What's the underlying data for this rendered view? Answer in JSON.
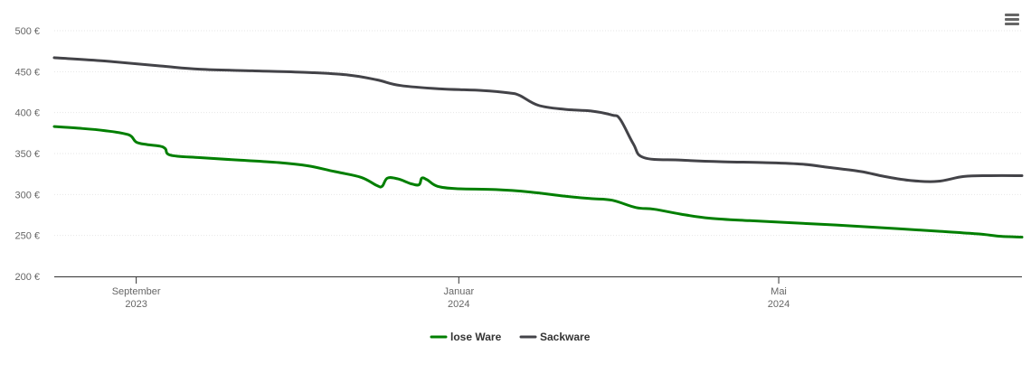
{
  "menu": {
    "icon": "hamburger-menu-icon"
  },
  "chart_data": {
    "type": "line",
    "xaxis": {
      "ticks": [
        {
          "date": "2023-09-01",
          "month": "September",
          "year": "2023"
        },
        {
          "date": "2024-01-01",
          "month": "Januar",
          "year": "2024"
        },
        {
          "date": "2024-05-01",
          "month": "Mai",
          "year": "2024"
        }
      ],
      "range": [
        "2023-08-01",
        "2024-08-01"
      ]
    },
    "yaxis": {
      "ticks": [
        "200 €",
        "250 €",
        "300 €",
        "350 €",
        "400 €",
        "450 €",
        "500 €"
      ],
      "tick_values": [
        200,
        250,
        300,
        350,
        400,
        450,
        500
      ],
      "ylim": [
        200,
        500
      ]
    },
    "grid": true,
    "legend_position": "bottom-center",
    "series": [
      {
        "name": "lose Ware",
        "color": "#007f00",
        "points": [
          [
            "2023-08-01",
            383
          ],
          [
            "2023-08-10",
            381
          ],
          [
            "2023-08-20",
            378
          ],
          [
            "2023-08-29",
            373
          ],
          [
            "2023-09-01",
            364
          ],
          [
            "2023-09-05",
            361
          ],
          [
            "2023-09-10",
            359
          ],
          [
            "2023-09-12",
            356
          ],
          [
            "2023-09-14",
            348
          ],
          [
            "2023-09-25",
            345
          ],
          [
            "2023-10-10",
            342
          ],
          [
            "2023-10-25",
            339
          ],
          [
            "2023-11-05",
            335
          ],
          [
            "2023-11-15",
            328
          ],
          [
            "2023-11-25",
            321
          ],
          [
            "2023-12-01",
            311
          ],
          [
            "2023-12-03",
            310
          ],
          [
            "2023-12-05",
            320
          ],
          [
            "2023-12-09",
            319
          ],
          [
            "2023-12-14",
            313
          ],
          [
            "2023-12-17",
            312
          ],
          [
            "2023-12-18",
            320
          ],
          [
            "2023-12-20",
            318
          ],
          [
            "2023-12-24",
            310
          ],
          [
            "2024-01-01",
            307
          ],
          [
            "2024-01-15",
            306
          ],
          [
            "2024-01-28",
            303
          ],
          [
            "2024-02-10",
            298
          ],
          [
            "2024-02-20",
            295
          ],
          [
            "2024-02-28",
            293
          ],
          [
            "2024-03-08",
            284
          ],
          [
            "2024-03-15",
            282
          ],
          [
            "2024-03-25",
            276
          ],
          [
            "2024-04-05",
            271
          ],
          [
            "2024-04-20",
            268
          ],
          [
            "2024-05-15",
            264
          ],
          [
            "2024-06-01",
            261
          ],
          [
            "2024-07-01",
            255
          ],
          [
            "2024-07-15",
            252
          ],
          [
            "2024-07-24",
            249
          ],
          [
            "2024-08-01",
            248
          ]
        ]
      },
      {
        "name": "Sackware",
        "color": "#434348",
        "points": [
          [
            "2023-08-01",
            467
          ],
          [
            "2023-08-20",
            463
          ],
          [
            "2023-09-10",
            457
          ],
          [
            "2023-09-25",
            453
          ],
          [
            "2023-10-15",
            451
          ],
          [
            "2023-11-05",
            449
          ],
          [
            "2023-11-20",
            446
          ],
          [
            "2023-12-01",
            440
          ],
          [
            "2023-12-10",
            433
          ],
          [
            "2023-12-25",
            429
          ],
          [
            "2024-01-10",
            427
          ],
          [
            "2024-01-20",
            424
          ],
          [
            "2024-01-24",
            421
          ],
          [
            "2024-01-31",
            409
          ],
          [
            "2024-02-10",
            404
          ],
          [
            "2024-02-20",
            402
          ],
          [
            "2024-02-28",
            397
          ],
          [
            "2024-03-02",
            392
          ],
          [
            "2024-03-07",
            362
          ],
          [
            "2024-03-11",
            345
          ],
          [
            "2024-03-25",
            342
          ],
          [
            "2024-04-10",
            340
          ],
          [
            "2024-04-25",
            339
          ],
          [
            "2024-05-10",
            337
          ],
          [
            "2024-05-20",
            333
          ],
          [
            "2024-06-01",
            328
          ],
          [
            "2024-06-10",
            322
          ],
          [
            "2024-06-20",
            317
          ],
          [
            "2024-06-30",
            316
          ],
          [
            "2024-07-10",
            322
          ],
          [
            "2024-07-20",
            323
          ],
          [
            "2024-08-01",
            323
          ]
        ]
      }
    ]
  }
}
